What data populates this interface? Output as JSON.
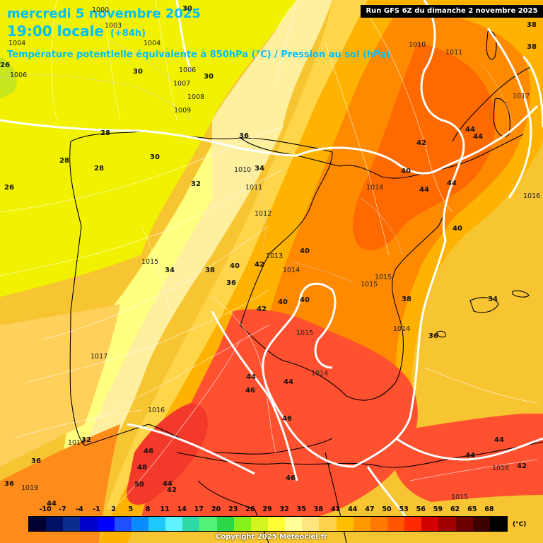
{
  "header": {
    "date": "mercredi 5 novembre 2025",
    "time": "19:00 locale",
    "forecast_hour": "(+84h)",
    "parameter": "Température potentielle équivalente à 850hPa (°C) / Pression au sol (hPa)"
  },
  "run_info": "Run GFS 6Z du dimanche 2 novembre 2025",
  "legend": {
    "unit": "(°C)",
    "ticks": [
      "-10",
      "-7",
      "-4",
      "-1",
      "2",
      "5",
      "8",
      "11",
      "14",
      "17",
      "20",
      "23",
      "26",
      "29",
      "32",
      "35",
      "38",
      "41",
      "44",
      "47",
      "50",
      "53",
      "56",
      "59",
      "62",
      "65",
      "68"
    ],
    "colors": [
      "#000033",
      "#001066",
      "#0a2d8c",
      "#0000cc",
      "#0000ff",
      "#1f4fff",
      "#0a8cff",
      "#1ec8ff",
      "#5ff3ff",
      "#2fd9a4",
      "#55f27a",
      "#2ad84a",
      "#86f21b",
      "#d4f51d",
      "#ffff33",
      "#ffff99",
      "#ffe680",
      "#ffd24d",
      "#ffbf00",
      "#ff9900",
      "#ff7a00",
      "#ff5500",
      "#ff2a00",
      "#d40000",
      "#a00000",
      "#6e0000",
      "#3d0000",
      "#000000"
    ]
  },
  "isobar_labels": [
    "1000",
    "1003",
    "1004",
    "1006",
    "1004",
    "1006",
    "1007",
    "1008",
    "1009",
    "1010",
    "1011",
    "1012",
    "1013",
    "1014",
    "1015",
    "1015",
    "1014",
    "1015",
    "1014",
    "1016",
    "1017",
    "1010",
    "1011",
    "1017",
    "1016",
    "1014",
    "1015",
    "1015",
    "1016",
    "1019",
    "1014"
  ],
  "temp_labels": [
    "30",
    "26",
    "30",
    "30",
    "28",
    "30",
    "28",
    "28",
    "26",
    "32",
    "36",
    "34",
    "34",
    "38",
    "40",
    "42",
    "36",
    "40",
    "42",
    "40",
    "44",
    "46",
    "44",
    "46",
    "46",
    "48",
    "50",
    "44",
    "42",
    "46",
    "38",
    "36",
    "34",
    "40",
    "42",
    "44",
    "44",
    "44",
    "40",
    "44",
    "42",
    "44",
    "44",
    "42",
    "36",
    "36",
    "38",
    "38",
    "40",
    "44",
    "32"
  ],
  "copyright": "Copyright 2025 Meteociel.fr"
}
